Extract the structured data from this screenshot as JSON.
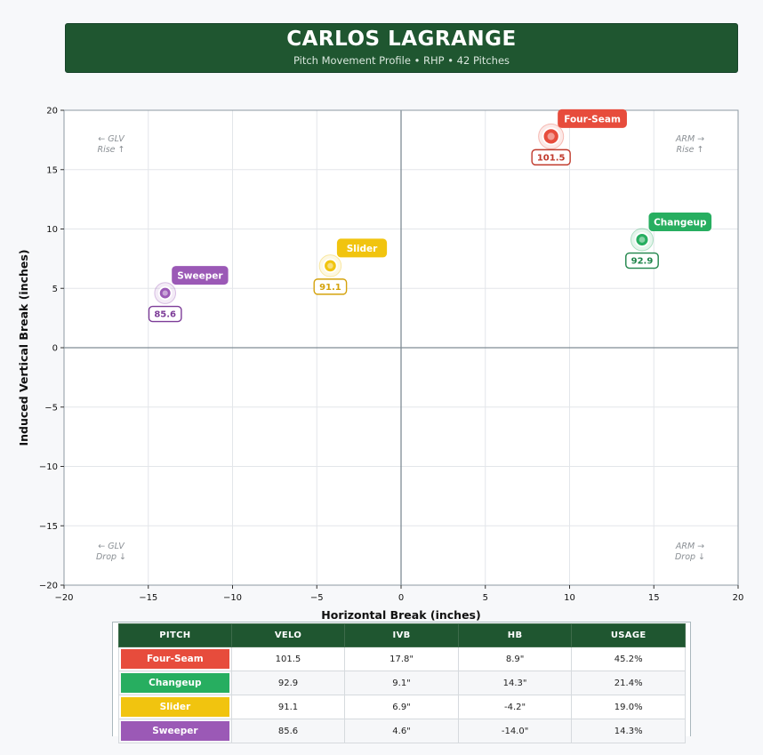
{
  "header": {
    "title": "CARLOS LAGRANGE",
    "subtitle": "Pitch Movement Profile  •  RHP  •  42 Pitches"
  },
  "chart_data": {
    "type": "scatter",
    "xlabel": "Horizontal Break (inches)",
    "ylabel": "Induced Vertical Break (inches)",
    "xlim": [
      -20,
      20
    ],
    "ylim": [
      -20,
      20
    ],
    "xticks": [
      -20,
      -15,
      -10,
      -5,
      0,
      5,
      10,
      15,
      20
    ],
    "yticks": [
      -20,
      -15,
      -10,
      -5,
      0,
      5,
      10,
      15,
      20
    ],
    "grid": true,
    "quadrant_labels": [
      {
        "line1": "← GLV",
        "line2": "Rise ↑",
        "pos": "top-left"
      },
      {
        "line1": "ARM →",
        "line2": "Rise ↑",
        "pos": "top-right"
      },
      {
        "line1": "← GLV",
        "line2": "Drop ↓",
        "pos": "bottom-left"
      },
      {
        "line1": "ARM →",
        "line2": "Drop ↓",
        "pos": "bottom-right"
      }
    ],
    "series": [
      {
        "name": "Four-Seam",
        "x": 8.9,
        "y": 17.8,
        "velo": "101.5",
        "usage": 45.2,
        "color": "#e74c3c",
        "text_color": "#c0392b"
      },
      {
        "name": "Changeup",
        "x": 14.3,
        "y": 9.1,
        "velo": "92.9",
        "usage": 21.4,
        "color": "#27ae60",
        "text_color": "#1e8449"
      },
      {
        "name": "Slider",
        "x": -4.2,
        "y": 6.9,
        "velo": "91.1",
        "usage": 19.0,
        "color": "#f1c40f",
        "text_color": "#d4a20c"
      },
      {
        "name": "Sweeper",
        "x": -14.0,
        "y": 4.6,
        "velo": "85.6",
        "usage": 14.3,
        "color": "#9b59b6",
        "text_color": "#7d3c98"
      }
    ]
  },
  "table": {
    "headers": [
      "PITCH",
      "VELO",
      "IVB",
      "HB",
      "USAGE"
    ],
    "rows": [
      {
        "pitch": "Four-Seam",
        "velo": "101.5",
        "ivb": "17.8\"",
        "hb": "8.9\"",
        "usage": "45.2%",
        "color": "#e74c3c"
      },
      {
        "pitch": "Changeup",
        "velo": "92.9",
        "ivb": "9.1\"",
        "hb": "14.3\"",
        "usage": "21.4%",
        "color": "#27ae60"
      },
      {
        "pitch": "Slider",
        "velo": "91.1",
        "ivb": "6.9\"",
        "hb": "-4.2\"",
        "usage": "19.0%",
        "color": "#f1c40f"
      },
      {
        "pitch": "Sweeper",
        "velo": "85.6",
        "ivb": "4.6\"",
        "hb": "-14.0\"",
        "usage": "14.3%",
        "color": "#9b59b6"
      }
    ]
  }
}
